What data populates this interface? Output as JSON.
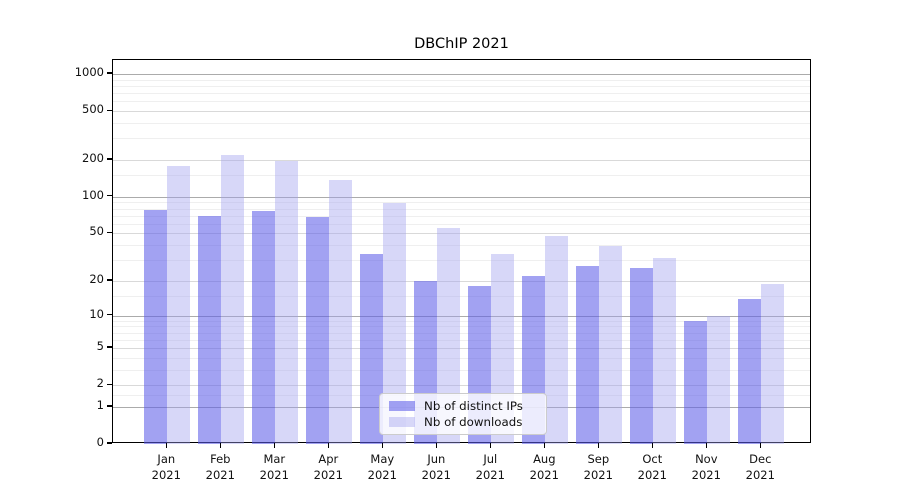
{
  "chart_data": {
    "type": "bar",
    "title": "DBChIP 2021",
    "categories": [
      "Jan 2021",
      "Feb 2021",
      "Mar 2021",
      "Apr 2021",
      "May 2021",
      "Jun 2021",
      "Jul 2021",
      "Aug 2021",
      "Sep 2021",
      "Oct 2021",
      "Nov 2021",
      "Dec 2021"
    ],
    "series": [
      {
        "name": "Nb of distinct IPs",
        "color": "rgba(92,92,232,0.57)",
        "values": [
          78,
          70,
          77,
          68,
          34,
          20,
          18,
          22,
          27,
          26,
          9,
          14
        ]
      },
      {
        "name": "Nb of downloads",
        "color": "rgba(160,160,238,0.42)",
        "values": [
          180,
          220,
          195,
          137,
          89,
          55,
          34,
          48,
          39,
          31,
          10,
          19
        ]
      }
    ],
    "xlabel": "",
    "ylabel": "",
    "yscale": "log1p",
    "ylim": [
      0,
      1300
    ],
    "y_ticks": [
      0,
      1,
      2,
      5,
      10,
      20,
      50,
      100,
      200,
      500,
      1000
    ],
    "y_minor_ticks": [
      1.5,
      3,
      4,
      6,
      7,
      8,
      9,
      15,
      30,
      40,
      60,
      70,
      80,
      90,
      150,
      300,
      400,
      600,
      700,
      800,
      900
    ],
    "grid": "on",
    "legend_position": "lower center"
  },
  "colors": {
    "grid_power10": "#ababab",
    "grid_major": "#d9d9d9",
    "grid_minor": "#efefef",
    "axis": "#000000",
    "tick_label": "#111111",
    "legend_border": "#cccccc",
    "legend_bg": "rgba(255,255,255,0.8)"
  }
}
